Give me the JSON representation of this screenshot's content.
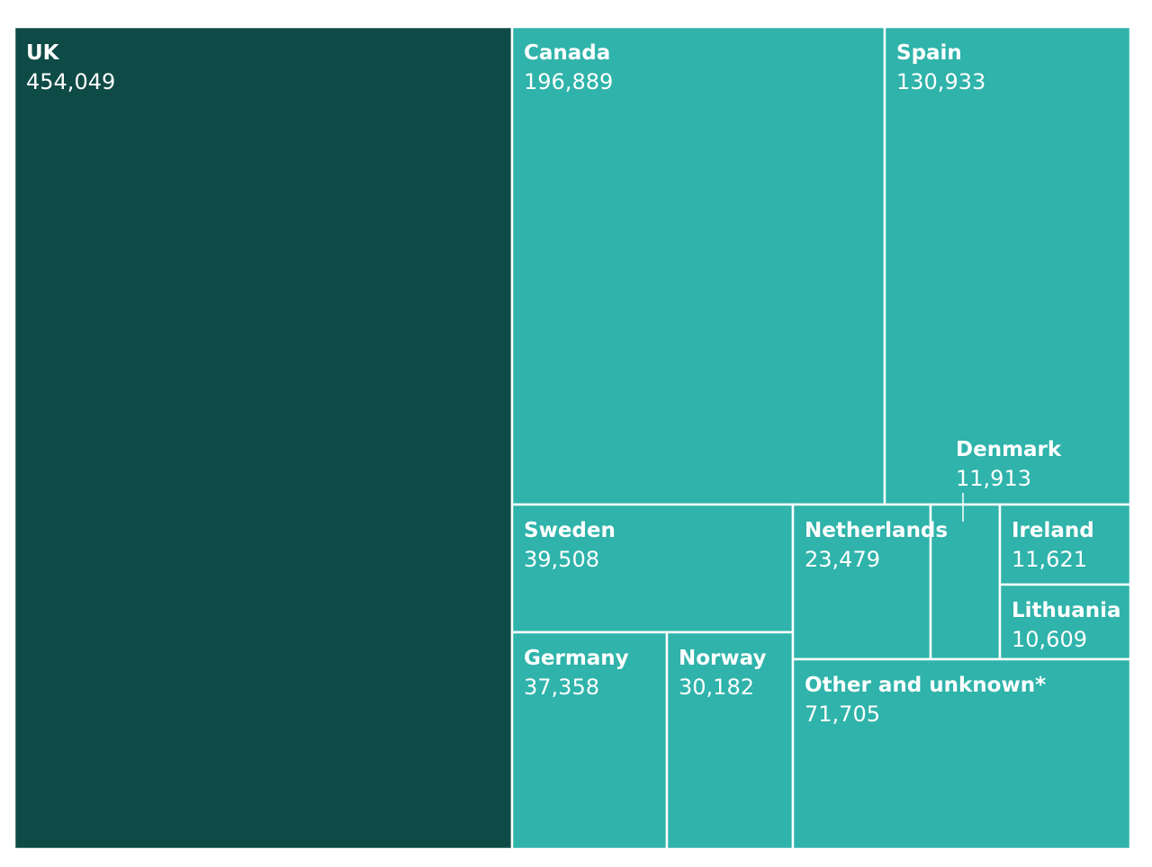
{
  "chart_data": {
    "type": "treemap",
    "title": "",
    "value_format": "thousands-comma",
    "colors": {
      "highlight": "#0e4b47",
      "default": "#2fb3aa",
      "border": "#ffffff",
      "text": "#ffffff"
    },
    "items": [
      {
        "name": "UK",
        "value": 454049,
        "value_label": "454,049",
        "highlight": true
      },
      {
        "name": "Canada",
        "value": 196889,
        "value_label": "196,889"
      },
      {
        "name": "Spain",
        "value": 130933,
        "value_label": "130,933"
      },
      {
        "name": "Sweden",
        "value": 39508,
        "value_label": "39,508"
      },
      {
        "name": "Germany",
        "value": 37358,
        "value_label": "37,358"
      },
      {
        "name": "Norway",
        "value": 30182,
        "value_label": "30,182"
      },
      {
        "name": "Netherlands",
        "value": 23479,
        "value_label": "23,479"
      },
      {
        "name": "Denmark",
        "value": 11913,
        "value_label": "11,913",
        "label_outside": true
      },
      {
        "name": "Ireland",
        "value": 11621,
        "value_label": "11,621"
      },
      {
        "name": "Lithuania",
        "value": 10609,
        "value_label": "10,609"
      },
      {
        "name": "Other and unknown*",
        "value": 71705,
        "value_label": "71,705"
      }
    ]
  }
}
